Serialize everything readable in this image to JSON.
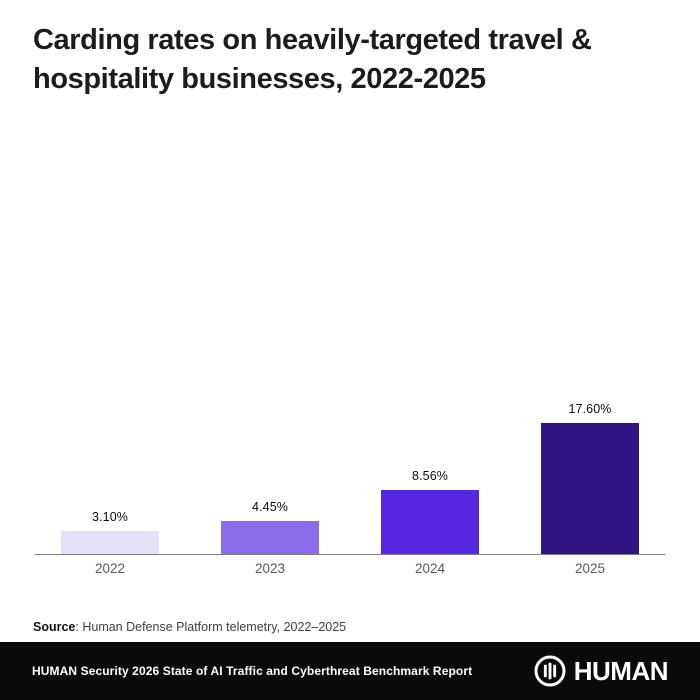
{
  "title": "Carding rates on heavily-targeted travel & hospitality businesses, 2022-2025",
  "chart_data": {
    "type": "bar",
    "title": "Carding rates on heavily-targeted travel & hospitality businesses, 2022-2025",
    "categories": [
      "2022",
      "2023",
      "2024",
      "2025"
    ],
    "values": [
      3.1,
      4.45,
      8.56,
      17.6
    ],
    "value_labels": [
      "3.10%",
      "4.45%",
      "8.56%",
      "17.60%"
    ],
    "bar_colors": [
      "#e7e2f7",
      "#8c6de9",
      "#5527df",
      "#2e1581"
    ],
    "xlabel": "",
    "ylabel": "",
    "ylim": [
      0,
      47.5
    ],
    "y_axis_visible": false,
    "grid": false,
    "legend": false,
    "data_labels_shown": true
  },
  "source": {
    "label": "Source",
    "text": ": Human Defense Platform telemetry, 2022–2025"
  },
  "footer": {
    "report": "HUMAN Security 2026 State of AI Traffic and Cyberthreat Benchmark Report",
    "brand": "HUMAN"
  },
  "colors": {
    "background": "#ffffff",
    "title_text": "#1c1c1c",
    "axis_line": "#7d7d7d",
    "year_label": "#575757",
    "value_label": "#0d0d0d",
    "footer_background": "#0a0a0a",
    "footer_text": "#ffffff"
  }
}
